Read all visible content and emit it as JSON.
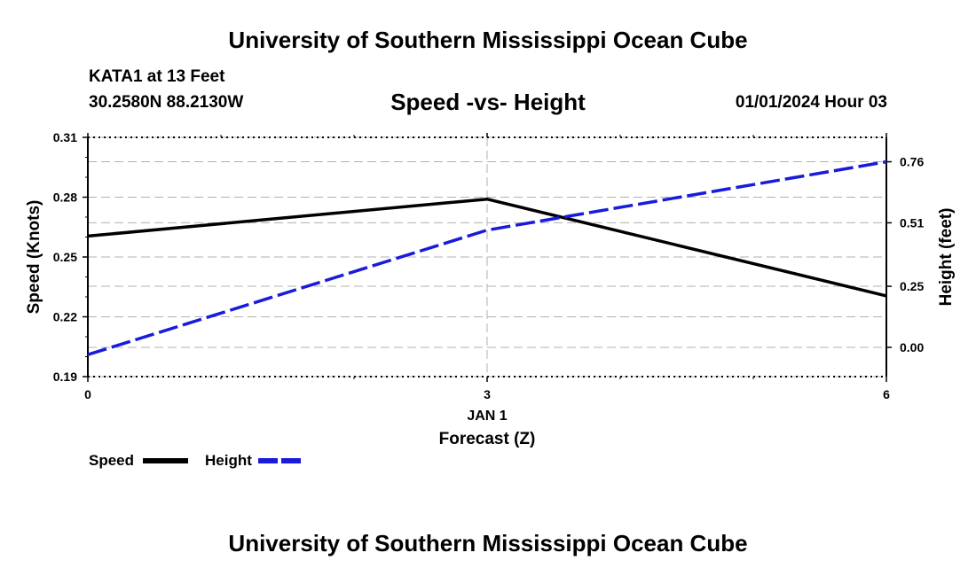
{
  "header": {
    "title": "University of Southern Mississippi Ocean Cube",
    "station": "KATA1 at 13 Feet",
    "coords": "30.2580N  88.2130W",
    "subtitle": "Speed -vs- Height",
    "datetime": "01/01/2024 Hour 03"
  },
  "footer": {
    "title": "University of Southern Mississippi Ocean Cube"
  },
  "chart_data": {
    "type": "line",
    "x": [
      0,
      3,
      6
    ],
    "x_ticks": [
      "0",
      "3",
      "6"
    ],
    "x_date_label": "JAN 1",
    "xlabel": "Forecast (Z)",
    "xlim": [
      0,
      6
    ],
    "ylabel_left": "Speed (Knots)",
    "ylim_left": [
      0.19,
      0.31
    ],
    "y_ticks_left": [
      "0.31",
      "0.28",
      "0.25",
      "0.22",
      "0.19"
    ],
    "ylabel_right": "Height (feet)",
    "ylim_right": [
      -0.12,
      0.86
    ],
    "y_ticks_right": [
      "0.76",
      "0.51",
      "0.25",
      "0.00"
    ],
    "series": [
      {
        "name": "Speed",
        "axis": "left",
        "color": "#000000",
        "style": "solid",
        "values": [
          0.2605,
          0.279,
          0.2305
        ]
      },
      {
        "name": "Height",
        "axis": "right",
        "color": "#1a1adc",
        "style": "dashed",
        "values": [
          -0.03,
          0.48,
          0.76
        ]
      }
    ],
    "legend": [
      "Speed",
      "Height"
    ],
    "grid": true
  }
}
